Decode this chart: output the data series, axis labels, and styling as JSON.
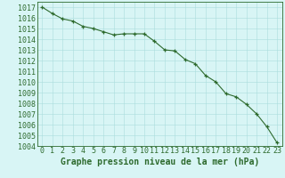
{
  "x": [
    0,
    1,
    2,
    3,
    4,
    5,
    6,
    7,
    8,
    9,
    10,
    11,
    12,
    13,
    14,
    15,
    16,
    17,
    18,
    19,
    20,
    21,
    22,
    23
  ],
  "y": [
    1017.0,
    1016.4,
    1015.9,
    1015.7,
    1015.2,
    1015.0,
    1014.7,
    1014.4,
    1014.5,
    1014.5,
    1014.5,
    1013.8,
    1013.0,
    1012.9,
    1012.1,
    1011.7,
    1010.6,
    1010.0,
    1008.9,
    1008.6,
    1007.9,
    1007.0,
    1005.8,
    1004.3
  ],
  "line_color": "#2d6a2d",
  "marker": "+",
  "marker_color": "#2d6a2d",
  "bg_color": "#d8f5f5",
  "grid_color": "#aadddd",
  "xlabel": "Graphe pression niveau de la mer (hPa)",
  "ylabel": "",
  "xlim": [
    -0.5,
    23.5
  ],
  "ylim": [
    1004,
    1017.5
  ],
  "yticks": [
    1004,
    1005,
    1006,
    1007,
    1008,
    1009,
    1010,
    1011,
    1012,
    1013,
    1014,
    1015,
    1016,
    1017
  ],
  "xticks": [
    0,
    1,
    2,
    3,
    4,
    5,
    6,
    7,
    8,
    9,
    10,
    11,
    12,
    13,
    14,
    15,
    16,
    17,
    18,
    19,
    20,
    21,
    22,
    23
  ],
  "xlabel_fontsize": 7,
  "tick_fontsize": 6,
  "tick_color": "#2d6a2d",
  "border_color": "#2d6a2d",
  "line_width": 0.8,
  "marker_size": 3.5
}
